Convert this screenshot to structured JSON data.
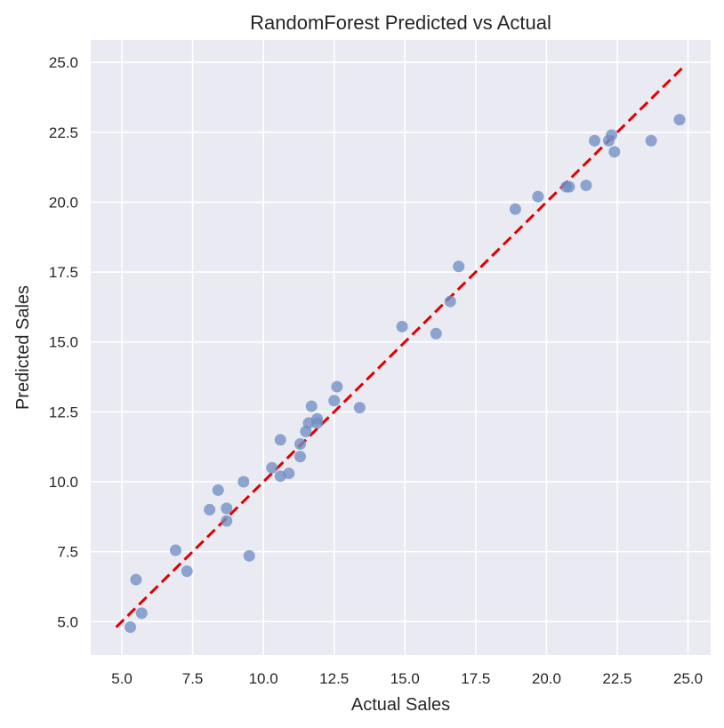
{
  "chart_data": {
    "type": "scatter",
    "title": "RandomForest Predicted vs Actual",
    "xlabel": "Actual Sales",
    "ylabel": "Predicted Sales",
    "xlim": [
      3.9,
      25.8
    ],
    "ylim": [
      3.8,
      25.8
    ],
    "xticks": [
      "5.0",
      "7.5",
      "10.0",
      "12.5",
      "15.0",
      "17.5",
      "20.0",
      "22.5",
      "25.0"
    ],
    "yticks": [
      "5.0",
      "7.5",
      "10.0",
      "12.5",
      "15.0",
      "17.5",
      "20.0",
      "22.5",
      "25.0"
    ],
    "grid": true,
    "colors": {
      "background": "#eaeaf2",
      "grid": "#ffffff",
      "points": "#6f8ec4",
      "reference_line": "#e00000"
    },
    "reference_line": {
      "x": [
        4.8,
        24.8
      ],
      "y": [
        4.8,
        24.8
      ],
      "style": "dashed"
    },
    "points": [
      {
        "x": 5.3,
        "y": 4.8
      },
      {
        "x": 5.5,
        "y": 6.5
      },
      {
        "x": 5.7,
        "y": 5.3
      },
      {
        "x": 6.9,
        "y": 7.55
      },
      {
        "x": 7.3,
        "y": 6.8
      },
      {
        "x": 8.1,
        "y": 9.0
      },
      {
        "x": 8.4,
        "y": 9.7
      },
      {
        "x": 8.7,
        "y": 9.05
      },
      {
        "x": 8.7,
        "y": 8.6
      },
      {
        "x": 9.3,
        "y": 10.0
      },
      {
        "x": 9.5,
        "y": 7.35
      },
      {
        "x": 10.3,
        "y": 10.5
      },
      {
        "x": 10.6,
        "y": 11.5
      },
      {
        "x": 10.6,
        "y": 10.2
      },
      {
        "x": 10.9,
        "y": 10.3
      },
      {
        "x": 11.3,
        "y": 10.9
      },
      {
        "x": 11.3,
        "y": 11.35
      },
      {
        "x": 11.5,
        "y": 11.8
      },
      {
        "x": 11.6,
        "y": 12.1
      },
      {
        "x": 11.7,
        "y": 12.7
      },
      {
        "x": 11.9,
        "y": 12.1
      },
      {
        "x": 11.9,
        "y": 12.25
      },
      {
        "x": 12.5,
        "y": 12.9
      },
      {
        "x": 12.6,
        "y": 13.4
      },
      {
        "x": 13.4,
        "y": 12.65
      },
      {
        "x": 14.9,
        "y": 15.55
      },
      {
        "x": 16.1,
        "y": 15.3
      },
      {
        "x": 16.6,
        "y": 16.45
      },
      {
        "x": 16.9,
        "y": 17.7
      },
      {
        "x": 18.9,
        "y": 19.75
      },
      {
        "x": 19.7,
        "y": 20.2
      },
      {
        "x": 20.7,
        "y": 20.55
      },
      {
        "x": 20.8,
        "y": 20.55
      },
      {
        "x": 21.4,
        "y": 20.6
      },
      {
        "x": 21.7,
        "y": 22.2
      },
      {
        "x": 22.2,
        "y": 22.2
      },
      {
        "x": 22.3,
        "y": 22.4
      },
      {
        "x": 22.4,
        "y": 21.8
      },
      {
        "x": 23.7,
        "y": 22.2
      },
      {
        "x": 24.7,
        "y": 22.95
      }
    ]
  }
}
